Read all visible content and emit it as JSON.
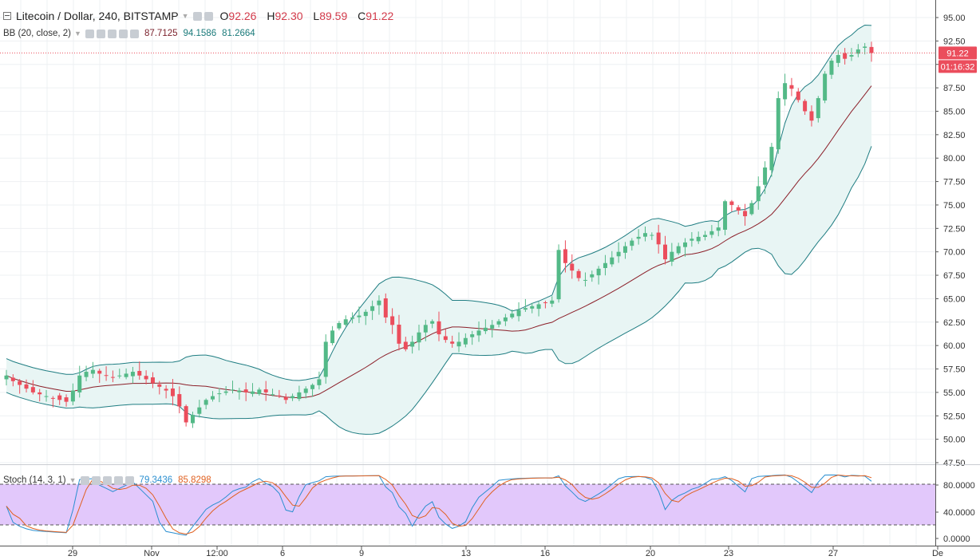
{
  "header": {
    "symbol": "Litecoin / Dollar, 240, BITSTAMP",
    "open_label": "O",
    "open": "92.26",
    "high_label": "H",
    "high": "92.30",
    "low_label": "L",
    "low": "89.59",
    "close_label": "C",
    "close": "91.22"
  },
  "bb_legend": {
    "label": "BB (20, close, 2)",
    "middle": "87.7125",
    "upper": "94.1586",
    "lower": "81.2664"
  },
  "stoch_legend": {
    "label": "Stoch (14, 3, 1)",
    "k": "79.3436",
    "d": "85.8298"
  },
  "price_badge": "91.22",
  "countdown_badge": "01:16:32",
  "colors": {
    "up": "#53b987",
    "down": "#eb4d5c",
    "band_fill": "#e8f5f4",
    "band_line": "#1f7d82",
    "basis": "#8b1e28",
    "stoch_k": "#2a8fd0",
    "stoch_d": "#e06020",
    "stoch_band": "#e2c8fb"
  },
  "chart_data": [
    {
      "type": "candlestick",
      "title": "Litecoin / Dollar, 240, BITSTAMP",
      "y_ticks": [
        "95.00",
        "92.50",
        "90.00",
        "87.50",
        "85.00",
        "82.50",
        "80.00",
        "77.50",
        "75.00",
        "72.50",
        "70.00",
        "67.50",
        "65.00",
        "62.50",
        "60.00",
        "57.50",
        "55.00",
        "52.50",
        "50.00",
        "47.50"
      ],
      "ylim": [
        47.5,
        95.0
      ],
      "x_ticks": [
        "29",
        "Nov",
        "12:00",
        "6",
        "9",
        "13",
        "16",
        "20",
        "23",
        "27",
        "De"
      ],
      "current_price": 91.22,
      "grid": true,
      "indicator": "Bollinger Bands (20, close, 2)",
      "candles_close": [
        56.8,
        56.2,
        55.8,
        55.4,
        55.0,
        54.8,
        54.6,
        54.4,
        54.2,
        54.0,
        55.2,
        56.8,
        57.2,
        57.4,
        57.0,
        56.8,
        56.6,
        56.8,
        57.0,
        57.2,
        56.8,
        56.4,
        56.0,
        55.6,
        55.2,
        54.6,
        53.5,
        51.8,
        52.6,
        53.4,
        54.2,
        54.6,
        54.9,
        55.1,
        55.3,
        55.2,
        55.0,
        55.1,
        55.3,
        55.0,
        54.8,
        54.6,
        54.2,
        54.6,
        55.0,
        55.4,
        55.8,
        56.4,
        60.4,
        61.6,
        62.4,
        62.8,
        63.0,
        63.2,
        63.6,
        64.2,
        64.8,
        63.0,
        62.2,
        60.2,
        59.6,
        60.4,
        61.4,
        62.2,
        62.6,
        61.2,
        60.6,
        60.2,
        60.4,
        60.8,
        61.2,
        61.6,
        61.9,
        62.2,
        62.6,
        63.0,
        63.4,
        63.8,
        64.0,
        64.2,
        64.4,
        64.6,
        64.8,
        70.2,
        68.8,
        68.0,
        67.2,
        67.0,
        67.6,
        68.2,
        68.8,
        69.4,
        70.0,
        70.6,
        71.2,
        71.6,
        72.0,
        71.8,
        70.8,
        69.2,
        70.0,
        70.6,
        71.0,
        71.4,
        71.6,
        71.8,
        72.2,
        72.6,
        75.4,
        75.0,
        74.4,
        73.8,
        75.2,
        77.0,
        79.0,
        81.2,
        86.4,
        88.0,
        87.4,
        86.2,
        85.0,
        84.0,
        86.4,
        89.0,
        90.4,
        91.0,
        90.6,
        91.0,
        91.6,
        91.9,
        91.22
      ],
      "bb_upper_end": 94.1586,
      "bb_middle_end": 87.7125,
      "bb_lower_end": 81.2664
    },
    {
      "type": "line",
      "title": "Stoch (14, 3, 1)",
      "y_ticks": [
        "80.0000",
        "40.0000",
        "0.0000"
      ],
      "ylim": [
        0,
        100
      ],
      "band": [
        20,
        80
      ],
      "series": [
        {
          "name": "%K",
          "last": 79.3436
        },
        {
          "name": "%D",
          "last": 85.8298
        }
      ]
    }
  ]
}
